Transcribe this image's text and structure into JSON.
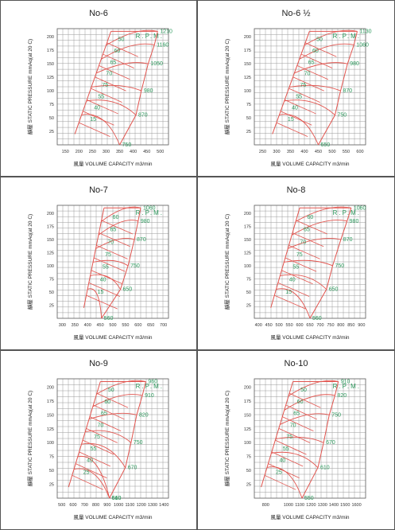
{
  "ui": {
    "line_color": "#e2554f",
    "label_color": "#2e9a5e",
    "grid_color": "#9a9a9a"
  },
  "chart_data": [
    {
      "type": "line",
      "title": "No-6",
      "xlabel": "風量 VOLUME CAPACITY m3/min",
      "ylabel": "靜壓 STATIC PRESSURE mmAq(at 20 C)",
      "rpm_label": "R.P.M.",
      "xticks": [
        150,
        200,
        250,
        300,
        350,
        400,
        450,
        500
      ],
      "yticks": [
        25,
        50,
        75,
        100,
        125,
        150,
        175,
        200
      ],
      "xlim": [
        120,
        530
      ],
      "ylim": [
        0,
        215
      ],
      "grid": true,
      "boundary": {
        "left": [
          [
            185,
            20
          ],
          [
            318,
            210
          ]
        ],
        "right": [
          [
            350,
            0
          ],
          [
            410,
            55
          ],
          [
            430,
            100
          ],
          [
            455,
            150
          ],
          [
            478,
            185
          ],
          [
            490,
            210
          ]
        ]
      },
      "efficiency_labels": [
        "50",
        "60",
        "65",
        "70",
        "75",
        "55",
        "40",
        "15"
      ],
      "rpm_values": [
        "1210",
        "1160",
        "1050",
        "980",
        "870",
        "750"
      ]
    },
    {
      "type": "line",
      "title": "No-6 1/2",
      "xlabel": "風量 VOLUME CAPACITY m3/min",
      "ylabel": "靜壓 STATIC PRESSURE mmAq(at 20 C)",
      "rpm_label": "R.P.M.",
      "xticks": [
        250,
        300,
        350,
        400,
        450,
        500,
        550,
        600
      ],
      "yticks": [
        25,
        50,
        75,
        100,
        125,
        150,
        175,
        200
      ],
      "xlim": [
        220,
        620
      ],
      "ylim": [
        0,
        215
      ],
      "grid": true,
      "boundary": {
        "left": [
          [
            285,
            20
          ],
          [
            418,
            210
          ]
        ],
        "right": [
          [
            450,
            0
          ],
          [
            510,
            55
          ],
          [
            530,
            100
          ],
          [
            555,
            150
          ],
          [
            578,
            185
          ],
          [
            590,
            210
          ]
        ]
      },
      "efficiency_labels": [
        "50",
        "60",
        "65",
        "70",
        "75",
        "55",
        "40",
        "15"
      ],
      "rpm_values": [
        "1130",
        "1060",
        "980",
        "870",
        "750",
        "650"
      ]
    },
    {
      "type": "line",
      "title": "No-7",
      "xlabel": "風量 VOLUME CAPACITY m3/min",
      "ylabel": "靜壓 STATIC PRESSURE mmAq(at 20 C)",
      "rpm_label": "R.P.M.",
      "xticks": [
        300,
        350,
        400,
        450,
        500,
        550,
        600,
        650,
        700
      ],
      "yticks": [
        25,
        50,
        75,
        100,
        125,
        150,
        175,
        200
      ],
      "xlim": [
        280,
        720
      ],
      "ylim": [
        0,
        215
      ],
      "grid": true,
      "boundary": {
        "left": [
          [
            385,
            20
          ],
          [
            465,
            210
          ]
        ],
        "right": [
          [
            455,
            0
          ],
          [
            530,
            55
          ],
          [
            560,
            100
          ],
          [
            585,
            150
          ],
          [
            600,
            185
          ],
          [
            610,
            210
          ]
        ]
      },
      "efficiency_labels": [
        "60",
        "65",
        "70",
        "75",
        "55",
        "40",
        "15"
      ],
      "rpm_values": [
        "1060",
        "980",
        "870",
        "750",
        "650",
        "560"
      ]
    },
    {
      "type": "line",
      "title": "No-8",
      "xlabel": "風量 VOLUME CAPACITY m3/min",
      "ylabel": "靜壓 STATIC PRESSURE mmAq(at 20 C)",
      "rpm_label": "R.P.M.",
      "xticks": [
        400,
        450,
        500,
        550,
        600,
        650,
        700,
        750,
        800,
        850,
        900
      ],
      "yticks": [
        25,
        50,
        75,
        100,
        125,
        150,
        175,
        200
      ],
      "xlim": [
        380,
        920
      ],
      "ylim": [
        0,
        215
      ],
      "grid": true,
      "boundary": {
        "left": [
          [
            460,
            20
          ],
          [
            600,
            210
          ]
        ],
        "right": [
          [
            650,
            0
          ],
          [
            730,
            55
          ],
          [
            760,
            100
          ],
          [
            800,
            150
          ],
          [
            830,
            185
          ],
          [
            850,
            210
          ]
        ]
      },
      "efficiency_labels": [
        "60",
        "65",
        "70",
        "75",
        "55",
        "40",
        "15"
      ],
      "rpm_values": [
        "1060",
        "980",
        "870",
        "750",
        "650",
        "560"
      ]
    },
    {
      "type": "line",
      "title": "No-9",
      "xlabel": "風量 VOLUME CAPACITY m3/min",
      "ylabel": "靜壓 STATIC PRESSURE mmAq(at 20 C)",
      "rpm_label": "R.P.M.",
      "xticks": [
        500,
        600,
        700,
        800,
        900,
        1000,
        1100,
        1200,
        1300,
        1400
      ],
      "yticks": [
        25,
        50,
        75,
        100,
        125,
        150,
        175,
        200
      ],
      "xlim": [
        460,
        1440
      ],
      "ylim": [
        0,
        215
      ],
      "grid": true,
      "boundary": {
        "left": [
          [
            560,
            20
          ],
          [
            840,
            210
          ]
        ],
        "right": [
          [
            920,
            0
          ],
          [
            1060,
            55
          ],
          [
            1110,
            100
          ],
          [
            1160,
            150
          ],
          [
            1210,
            185
          ],
          [
            1240,
            210
          ]
        ]
      },
      "efficiency_labels": [
        "50",
        "60",
        "65",
        "70",
        "75",
        "55",
        "40",
        "25"
      ],
      "rpm_values": [
        "960",
        "910",
        "820",
        "750",
        "670",
        "610",
        "560"
      ]
    },
    {
      "type": "line",
      "title": "No-10",
      "xlabel": "風量 VOLUME CAPACITY m3/min",
      "ylabel": "靜壓 STATIC PRESSURE mmAq(at 20 C)",
      "rpm_label": "R.P.M.",
      "xticks": [
        800,
        1000,
        1100,
        1200,
        1300,
        1400,
        1500,
        1600
      ],
      "yticks": [
        25,
        50,
        75,
        100,
        125,
        150,
        175,
        200
      ],
      "xlim": [
        700,
        1680
      ],
      "ylim": [
        0,
        215
      ],
      "grid": true,
      "boundary": {
        "left": [
          [
            760,
            20
          ],
          [
            1040,
            210
          ]
        ],
        "right": [
          [
            1120,
            0
          ],
          [
            1260,
            55
          ],
          [
            1310,
            100
          ],
          [
            1360,
            150
          ],
          [
            1410,
            185
          ],
          [
            1440,
            210
          ]
        ]
      },
      "efficiency_labels": [
        "50",
        "60",
        "65",
        "70",
        "75",
        "55",
        "40",
        "25"
      ],
      "rpm_values": [
        "910",
        "820",
        "750",
        "670",
        "610",
        "550"
      ]
    }
  ]
}
